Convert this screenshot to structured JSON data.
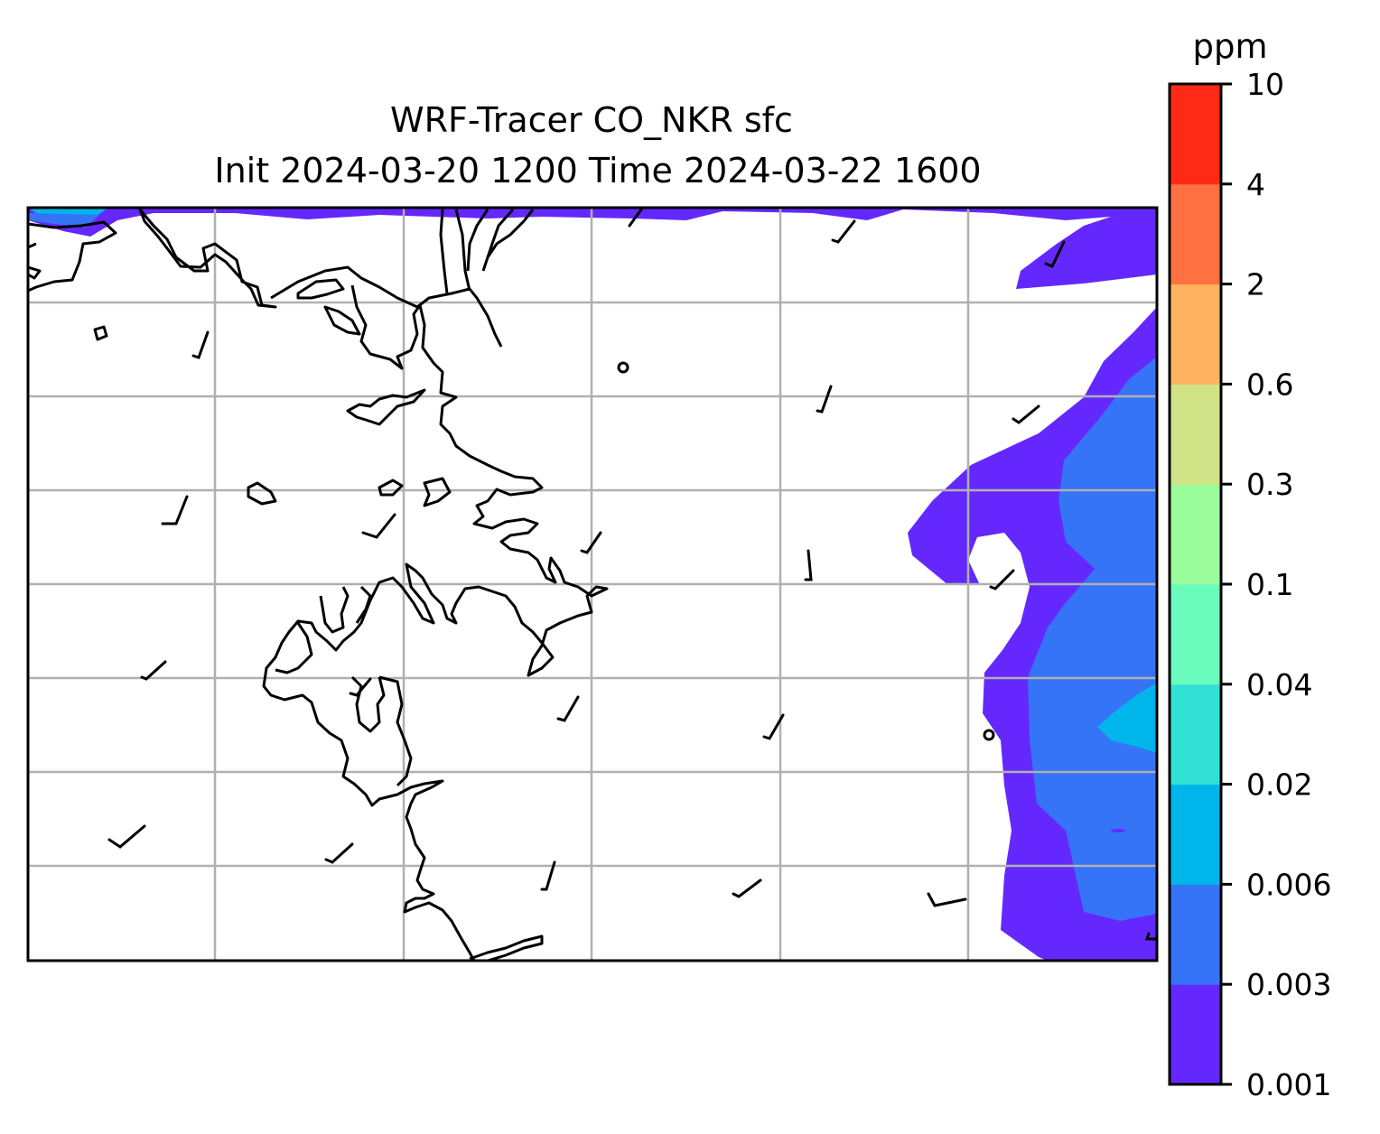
{
  "title": {
    "line1": "WRF-Tracer CO_NKR sfc",
    "line2": "Init 2024-03-20 1200 Time 2024-03-22 1600"
  },
  "colorbar": {
    "unit": "ppm",
    "levels": [
      "0.001",
      "0.003",
      "0.006",
      "0.02",
      "0.04",
      "0.1",
      "0.3",
      "0.6",
      "2",
      "4",
      "10"
    ],
    "colors": [
      "#6428fe",
      "#3574f6",
      "#00b5ea",
      "#33e0d5",
      "#6afcbc",
      "#9cfd9d",
      "#d2e286",
      "#ffb360",
      "#ff7140",
      "#ff2a16"
    ]
  },
  "map": {
    "gridlines": true,
    "features": [
      "coastline",
      "wind-barbs",
      "tracer-concentration-fill"
    ]
  }
}
